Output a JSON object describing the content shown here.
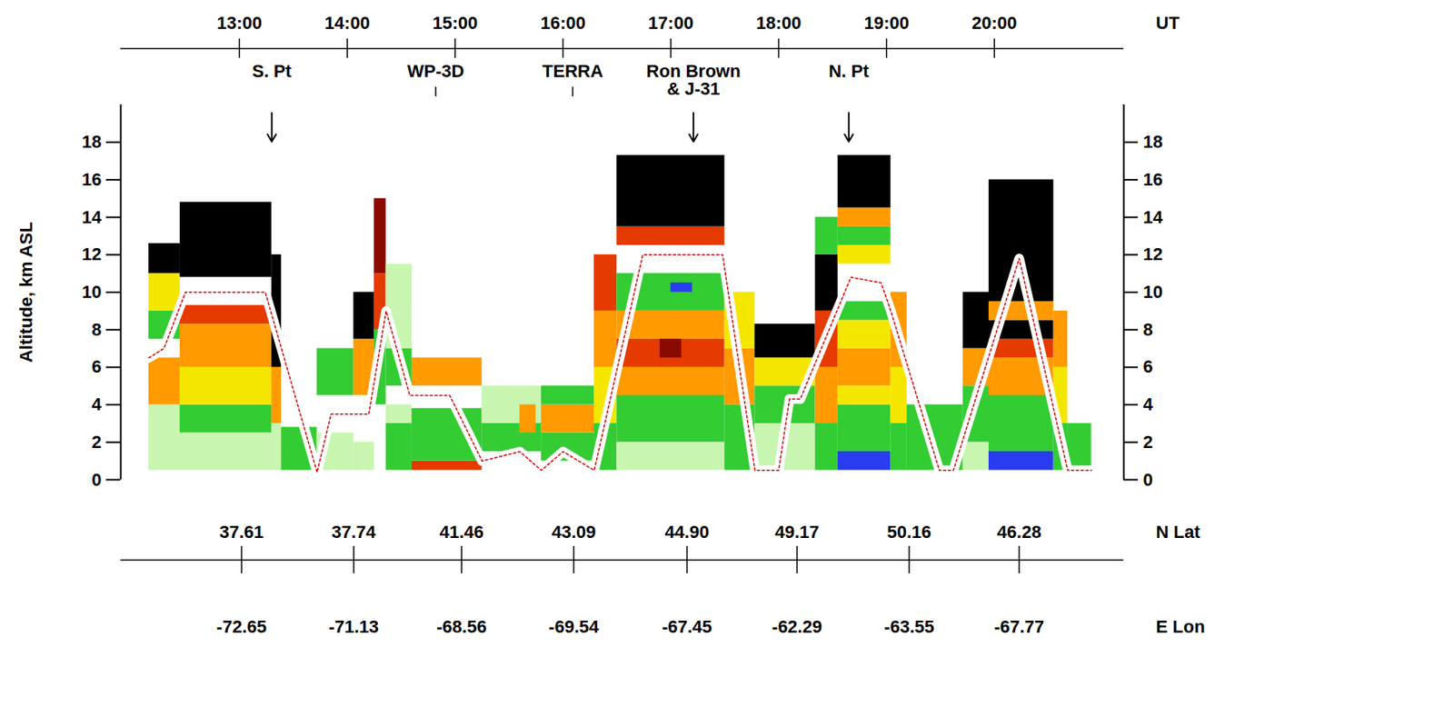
{
  "chart_data": {
    "type": "curtain",
    "x_label": "UT",
    "y_label": "Altitude, km ASL",
    "xlim": [
      11.9,
      21.2
    ],
    "xticks": [
      {
        "value": 13,
        "label": "13:00"
      },
      {
        "value": 14,
        "label": "14:00"
      },
      {
        "value": 15,
        "label": "15:00"
      },
      {
        "value": 16,
        "label": "16:00"
      },
      {
        "value": 17,
        "label": "17:00"
      },
      {
        "value": 18,
        "label": "18:00"
      },
      {
        "value": 19,
        "label": "19:00"
      },
      {
        "value": 20,
        "label": "20:00"
      }
    ],
    "ylim": [
      0,
      20
    ],
    "yticks": [
      0,
      2,
      4,
      6,
      8,
      10,
      12,
      14,
      16,
      18
    ],
    "lat": {
      "label": "N Lat",
      "x": [
        13.02,
        14.06,
        15.06,
        16.1,
        17.15,
        18.17,
        19.21,
        20.23
      ],
      "values": [
        37.61,
        37.74,
        41.46,
        43.09,
        {
          "value": 44.9,
          "label": "44.90"
        },
        49.17,
        50.16,
        46.28
      ]
    },
    "lon": {
      "label": "E Lon",
      "x": [
        13.02,
        14.06,
        15.06,
        16.1,
        17.15,
        18.17,
        19.21,
        20.23
      ],
      "values": [
        -72.65,
        -71.13,
        -68.56,
        -69.54,
        -67.45,
        -62.29,
        -63.55,
        -67.77
      ]
    },
    "annotations": [
      {
        "text": "S. Pt",
        "x": 13.3,
        "marker": "arrow"
      },
      {
        "text": "WP-3D",
        "x": 14.82,
        "marker": "tick"
      },
      {
        "text": "TERRA",
        "x": 16.09,
        "marker": "tick"
      },
      {
        "text": "Ron Brown & J-31",
        "x": 17.21,
        "marker": "arrow"
      },
      {
        "text": "N. Pt",
        "x": 18.65,
        "marker": "arrow"
      }
    ],
    "track": {
      "x": [
        12.16,
        12.3,
        12.5,
        13.24,
        13.72,
        13.85,
        14.2,
        14.36,
        14.58,
        14.95,
        15.25,
        15.6,
        15.8,
        16.0,
        16.29,
        16.74,
        17.48,
        17.78,
        18.0,
        18.1,
        18.2,
        18.67,
        18.95,
        19.04,
        19.49,
        19.62,
        20.23,
        20.68,
        20.9
      ],
      "y": [
        6.5,
        7.0,
        10.0,
        10.0,
        0.4,
        3.5,
        3.5,
        9.0,
        4.5,
        4.5,
        1.0,
        1.5,
        0.5,
        1.5,
        0.5,
        12.0,
        12.0,
        0.5,
        0.5,
        4.3,
        4.3,
        10.8,
        10.5,
        9.0,
        0.5,
        0.5,
        11.8,
        0.5,
        0.5
      ]
    },
    "bands": [
      {
        "t0": 12.16,
        "t1": 12.45,
        "z0": 0.5,
        "z1": 4,
        "level": 2
      },
      {
        "t0": 12.16,
        "t1": 12.45,
        "z0": 4,
        "z1": 6.5,
        "level": 5
      },
      {
        "t0": 12.16,
        "t1": 12.45,
        "z0": 7.5,
        "z1": 9,
        "level": 3
      },
      {
        "t0": 12.16,
        "t1": 12.45,
        "z0": 9,
        "z1": 11,
        "level": 4
      },
      {
        "t0": 12.16,
        "t1": 12.45,
        "z0": 11,
        "z1": 12.6,
        "level": 8
      },
      {
        "t0": 12.45,
        "t1": 13.3,
        "z0": 0.5,
        "z1": 2.5,
        "level": 2
      },
      {
        "t0": 12.45,
        "t1": 13.3,
        "z0": 2.5,
        "z1": 4,
        "level": 3
      },
      {
        "t0": 12.45,
        "t1": 13.3,
        "z0": 4,
        "z1": 6,
        "level": 4
      },
      {
        "t0": 12.45,
        "t1": 13.3,
        "z0": 6,
        "z1": 8.3,
        "level": 5
      },
      {
        "t0": 12.45,
        "t1": 13.3,
        "z0": 8.3,
        "z1": 9.3,
        "level": 6
      },
      {
        "t0": 12.45,
        "t1": 13.3,
        "z0": 10.8,
        "z1": 14.8,
        "level": 8
      },
      {
        "t0": 13.3,
        "t1": 13.39,
        "z0": 0.5,
        "z1": 3,
        "level": 2
      },
      {
        "t0": 13.3,
        "t1": 13.39,
        "z0": 3,
        "z1": 6,
        "level": 5
      },
      {
        "t0": 13.3,
        "t1": 13.39,
        "z0": 6,
        "z1": 12,
        "level": 8
      },
      {
        "t0": 13.39,
        "t1": 13.72,
        "z0": 0.5,
        "z1": 2.8,
        "level": 3
      },
      {
        "t0": 13.72,
        "t1": 14.06,
        "z0": 0.5,
        "z1": 2.5,
        "level": 2
      },
      {
        "t0": 13.72,
        "t1": 14.06,
        "z0": 4.5,
        "z1": 7,
        "level": 3
      },
      {
        "t0": 14.06,
        "t1": 14.25,
        "z0": 0.5,
        "z1": 2,
        "level": 2
      },
      {
        "t0": 14.06,
        "t1": 14.25,
        "z0": 4.5,
        "z1": 7.5,
        "level": 5
      },
      {
        "t0": 14.06,
        "t1": 14.25,
        "z0": 7.5,
        "z1": 10,
        "level": 8
      },
      {
        "t0": 14.25,
        "t1": 14.36,
        "z0": 4,
        "z1": 8,
        "level": 3
      },
      {
        "t0": 14.25,
        "t1": 14.36,
        "z0": 8,
        "z1": 11,
        "level": 6
      },
      {
        "t0": 14.25,
        "t1": 14.36,
        "z0": 11,
        "z1": 15,
        "level": 7
      },
      {
        "t0": 14.36,
        "t1": 14.6,
        "z0": 0.5,
        "z1": 3,
        "level": 3
      },
      {
        "t0": 14.36,
        "t1": 14.6,
        "z0": 3,
        "z1": 4,
        "level": 2
      },
      {
        "t0": 14.36,
        "t1": 14.6,
        "z0": 5,
        "z1": 7,
        "level": 3
      },
      {
        "t0": 14.36,
        "t1": 14.6,
        "z0": 7,
        "z1": 11.5,
        "level": 2
      },
      {
        "t0": 14.6,
        "t1": 15.25,
        "z0": 0.5,
        "z1": 1,
        "level": 6
      },
      {
        "t0": 14.6,
        "t1": 15.25,
        "z0": 1,
        "z1": 3.8,
        "level": 3
      },
      {
        "t0": 14.6,
        "t1": 15.25,
        "z0": 5,
        "z1": 6.5,
        "level": 5
      },
      {
        "t0": 15.25,
        "t1": 15.8,
        "z0": 1.5,
        "z1": 3,
        "level": 3
      },
      {
        "t0": 15.25,
        "t1": 15.8,
        "z0": 3,
        "z1": 5,
        "level": 2
      },
      {
        "t0": 15.6,
        "t1": 15.75,
        "z0": 2.5,
        "z1": 4,
        "level": 5
      },
      {
        "t0": 15.8,
        "t1": 16.29,
        "z0": 1,
        "z1": 2.5,
        "level": 3
      },
      {
        "t0": 15.8,
        "t1": 16.29,
        "z0": 2.5,
        "z1": 4,
        "level": 5
      },
      {
        "t0": 15.8,
        "t1": 16.29,
        "z0": 4,
        "z1": 5,
        "level": 3
      },
      {
        "t0": 16.29,
        "t1": 16.5,
        "z0": 0.5,
        "z1": 3,
        "level": 3
      },
      {
        "t0": 16.29,
        "t1": 16.5,
        "z0": 3,
        "z1": 6,
        "level": 4
      },
      {
        "t0": 16.29,
        "t1": 16.5,
        "z0": 6,
        "z1": 9,
        "level": 5
      },
      {
        "t0": 16.29,
        "t1": 16.5,
        "z0": 9,
        "z1": 12,
        "level": 6
      },
      {
        "t0": 16.5,
        "t1": 17.5,
        "z0": 0.5,
        "z1": 2,
        "level": 2
      },
      {
        "t0": 16.5,
        "t1": 17.5,
        "z0": 2,
        "z1": 4.5,
        "level": 3
      },
      {
        "t0": 16.5,
        "t1": 17.5,
        "z0": 4.5,
        "z1": 6,
        "level": 5
      },
      {
        "t0": 16.5,
        "t1": 17.5,
        "z0": 6,
        "z1": 7.5,
        "level": 6
      },
      {
        "t0": 16.9,
        "t1": 17.1,
        "z0": 6.5,
        "z1": 7.6,
        "level": 7
      },
      {
        "t0": 16.5,
        "t1": 17.5,
        "z0": 7.5,
        "z1": 9,
        "level": 5
      },
      {
        "t0": 16.5,
        "t1": 17.5,
        "z0": 9,
        "z1": 11,
        "level": 3
      },
      {
        "t0": 17.0,
        "t1": 17.2,
        "z0": 10,
        "z1": 10.5,
        "level": 1
      },
      {
        "t0": 16.5,
        "t1": 17.5,
        "z0": 12.5,
        "z1": 13.5,
        "level": 6
      },
      {
        "t0": 16.5,
        "t1": 17.5,
        "z0": 13.5,
        "z1": 17.3,
        "level": 8
      },
      {
        "t0": 17.5,
        "t1": 17.78,
        "z0": 0.5,
        "z1": 4,
        "level": 3
      },
      {
        "t0": 17.5,
        "t1": 17.78,
        "z0": 4,
        "z1": 7,
        "level": 5
      },
      {
        "t0": 17.5,
        "t1": 17.78,
        "z0": 7,
        "z1": 10,
        "level": 4
      },
      {
        "t0": 17.78,
        "t1": 18.34,
        "z0": 0.5,
        "z1": 3,
        "level": 2
      },
      {
        "t0": 17.78,
        "t1": 18.34,
        "z0": 3,
        "z1": 5,
        "level": 3
      },
      {
        "t0": 17.78,
        "t1": 18.34,
        "z0": 5,
        "z1": 6.5,
        "level": 4
      },
      {
        "t0": 17.78,
        "t1": 18.34,
        "z0": 6.5,
        "z1": 8.3,
        "level": 8
      },
      {
        "t0": 18.34,
        "t1": 18.55,
        "z0": 0.5,
        "z1": 3,
        "level": 3
      },
      {
        "t0": 18.34,
        "t1": 18.55,
        "z0": 3,
        "z1": 6,
        "level": 5
      },
      {
        "t0": 18.34,
        "t1": 18.55,
        "z0": 6,
        "z1": 9,
        "level": 6
      },
      {
        "t0": 18.34,
        "t1": 18.55,
        "z0": 9,
        "z1": 12,
        "level": 8
      },
      {
        "t0": 18.34,
        "t1": 18.55,
        "z0": 12,
        "z1": 14,
        "level": 3
      },
      {
        "t0": 18.55,
        "t1": 19.04,
        "z0": 0.5,
        "z1": 1.5,
        "level": 1
      },
      {
        "t0": 18.55,
        "t1": 19.04,
        "z0": 1.5,
        "z1": 4,
        "level": 3
      },
      {
        "t0": 18.55,
        "t1": 19.04,
        "z0": 4,
        "z1": 5,
        "level": 4
      },
      {
        "t0": 18.55,
        "t1": 19.04,
        "z0": 5,
        "z1": 7,
        "level": 5
      },
      {
        "t0": 18.55,
        "t1": 19.04,
        "z0": 7,
        "z1": 8.5,
        "level": 4
      },
      {
        "t0": 18.55,
        "t1": 19.04,
        "z0": 8.5,
        "z1": 9.5,
        "level": 3
      },
      {
        "t0": 18.55,
        "t1": 19.04,
        "z0": 11.5,
        "z1": 12.5,
        "level": 4
      },
      {
        "t0": 18.55,
        "t1": 19.04,
        "z0": 12.5,
        "z1": 13.5,
        "level": 3
      },
      {
        "t0": 18.55,
        "t1": 19.04,
        "z0": 13.5,
        "z1": 14.5,
        "level": 5
      },
      {
        "t0": 18.55,
        "t1": 19.04,
        "z0": 14.5,
        "z1": 17.3,
        "level": 8
      },
      {
        "t0": 19.04,
        "t1": 19.19,
        "z0": 0.5,
        "z1": 3,
        "level": 3
      },
      {
        "t0": 19.04,
        "t1": 19.19,
        "z0": 3,
        "z1": 6,
        "level": 4
      },
      {
        "t0": 19.04,
        "t1": 19.19,
        "z0": 6,
        "z1": 10,
        "level": 5
      },
      {
        "t0": 19.19,
        "t1": 19.71,
        "z0": 0.5,
        "z1": 4,
        "level": 3
      },
      {
        "t0": 19.71,
        "t1": 19.95,
        "z0": 0.5,
        "z1": 2,
        "level": 2
      },
      {
        "t0": 19.71,
        "t1": 19.95,
        "z0": 2,
        "z1": 5,
        "level": 3
      },
      {
        "t0": 19.71,
        "t1": 19.95,
        "z0": 5,
        "z1": 7,
        "level": 5
      },
      {
        "t0": 19.71,
        "t1": 19.95,
        "z0": 7,
        "z1": 10,
        "level": 8
      },
      {
        "t0": 19.95,
        "t1": 20.55,
        "z0": 0.5,
        "z1": 1.5,
        "level": 1
      },
      {
        "t0": 19.95,
        "t1": 20.55,
        "z0": 1.5,
        "z1": 4.5,
        "level": 3
      },
      {
        "t0": 19.95,
        "t1": 20.55,
        "z0": 4.5,
        "z1": 6.5,
        "level": 5
      },
      {
        "t0": 19.95,
        "t1": 20.55,
        "z0": 6.5,
        "z1": 7.5,
        "level": 6
      },
      {
        "t0": 19.95,
        "t1": 20.55,
        "z0": 7.5,
        "z1": 8.5,
        "level": 8
      },
      {
        "t0": 19.95,
        "t1": 20.55,
        "z0": 8.5,
        "z1": 9.5,
        "level": 5
      },
      {
        "t0": 19.95,
        "t1": 20.55,
        "z0": 9.5,
        "z1": 16,
        "level": 8
      },
      {
        "t0": 20.55,
        "t1": 20.68,
        "z0": 0.5,
        "z1": 3,
        "level": 3
      },
      {
        "t0": 20.55,
        "t1": 20.68,
        "z0": 3,
        "z1": 6,
        "level": 4
      },
      {
        "t0": 20.55,
        "t1": 20.68,
        "z0": 6,
        "z1": 9,
        "level": 5
      },
      {
        "t0": 20.68,
        "t1": 20.9,
        "z0": 0.5,
        "z1": 3,
        "level": 3
      }
    ]
  }
}
